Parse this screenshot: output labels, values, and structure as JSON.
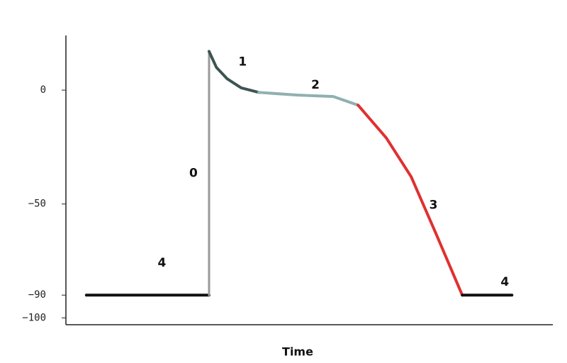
{
  "chart_data": {
    "type": "line",
    "x_label": "Time",
    "xlim": [
      0,
      100
    ],
    "ylim": [
      -103,
      24
    ],
    "yticks": [
      0,
      {
        "value": -50,
        "label": "−50"
      },
      {
        "value": -90,
        "label": "−90"
      },
      {
        "value": -100,
        "label": "−100"
      }
    ],
    "grid": false,
    "series": [
      {
        "label": "4",
        "color": "#111111",
        "x": [
          4.2,
          29.4
        ],
        "values": [
          -90,
          -90
        ]
      },
      {
        "label": "0",
        "color": "#9a9a9a",
        "x": [
          29.4,
          29.4
        ],
        "values": [
          -90,
          17
        ]
      },
      {
        "label": "1",
        "color": "#3d5552",
        "x": [
          29.4,
          30.9,
          33.1,
          36.0,
          39.6
        ],
        "values": [
          17,
          10,
          5,
          1,
          -1
        ]
      },
      {
        "label": "2",
        "color": "#8fb0b0",
        "x": [
          39.6,
          47.6,
          54.9,
          60.0
        ],
        "values": [
          -1,
          -2.2,
          -2.8,
          -6.6
        ]
      },
      {
        "label": "3",
        "color": "#e03030",
        "x": [
          60.0,
          65.8,
          70.9,
          76.0,
          81.4
        ],
        "values": [
          -6.6,
          -21,
          -38,
          -63,
          -90
        ]
      },
      {
        "label": "4",
        "color": "#111111",
        "x": [
          81.4,
          91.6
        ],
        "values": [
          -90,
          -90
        ]
      }
    ]
  }
}
